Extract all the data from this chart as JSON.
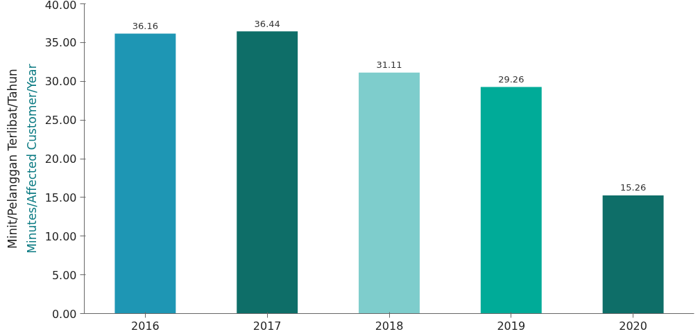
{
  "chart_data": {
    "type": "bar",
    "ylabel": "Minutes/Affected Customer/Year\nMinit/Pelanggan Terlibat/Tahun",
    "categories": [
      "2016",
      "2017",
      "2018",
      "2019",
      "2020"
    ],
    "values": [
      36.16,
      36.44,
      31.11,
      29.26,
      15.26
    ],
    "colors": [
      "#1e96b4",
      "#0e6e68",
      "#7ecdcc",
      "#00ab98",
      "#0e6e68"
    ],
    "ylim": [
      0,
      40
    ],
    "yticks": [
      {
        "value": 0,
        "label": "0.00"
      },
      {
        "value": 5,
        "label": "5.00"
      },
      {
        "value": 10,
        "label": "10.00"
      },
      {
        "value": 15,
        "label": "15.00"
      },
      {
        "value": 20,
        "label": "20.00"
      },
      {
        "value": 25,
        "label": "25.00"
      },
      {
        "value": 30,
        "label": "30.00"
      },
      {
        "value": 35,
        "label": "35.00"
      },
      {
        "value": 40,
        "label": "40.00"
      }
    ],
    "data_labels": true,
    "grid": false
  }
}
